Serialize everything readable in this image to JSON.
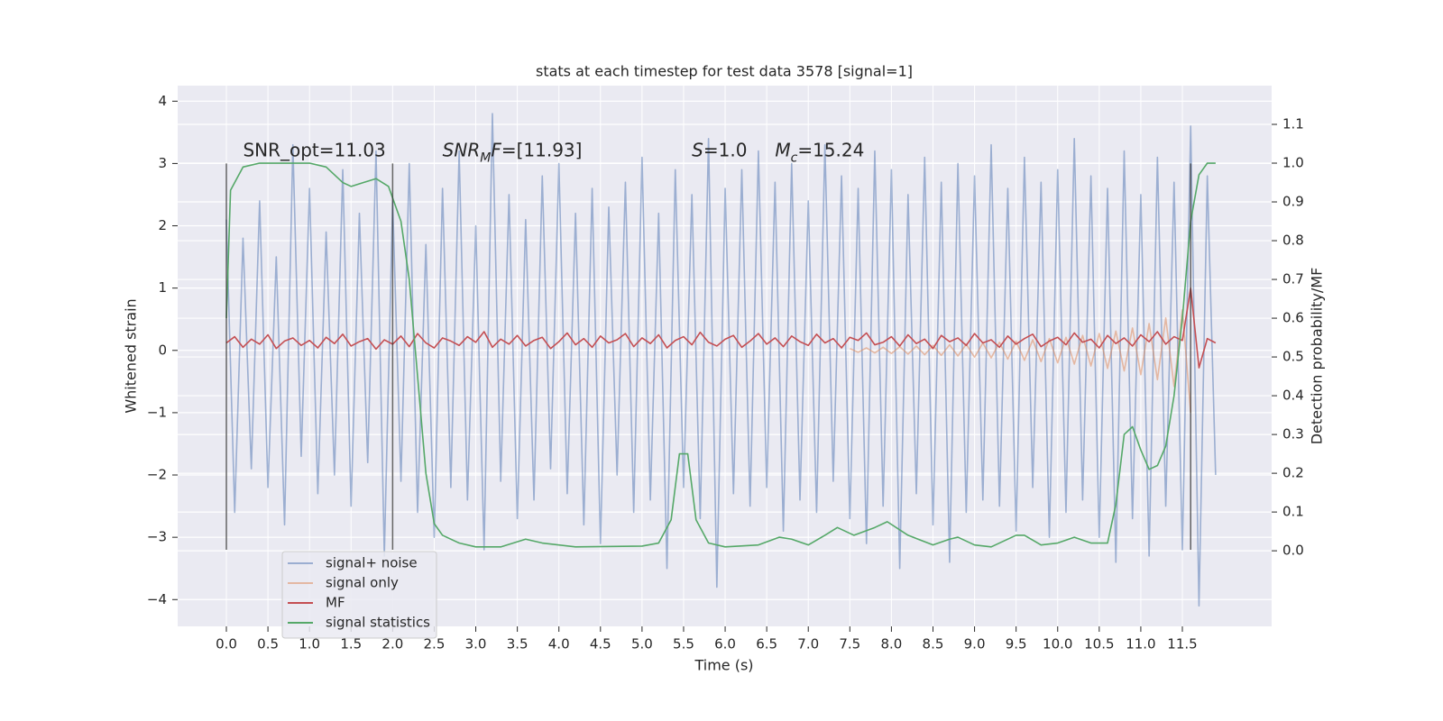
{
  "chart_data": {
    "type": "line",
    "title": "stats at each timestep for test data 3578 [signal=1]",
    "x_label": "Time (s)",
    "y_label": "Whitened strain",
    "y2_label": "Detection probability/MF",
    "xlim": [
      -0.586,
      12.574
    ],
    "ylim": [
      -4.43,
      4.25
    ],
    "y2lim": [
      -0.195,
      1.2
    ],
    "grid": true,
    "legend_loc": "lower left",
    "xticks": [
      {
        "value": 0,
        "label": "0.0"
      },
      0.5,
      {
        "value": 1,
        "label": "1.0"
      },
      1.5,
      {
        "value": 2,
        "label": "2.0"
      },
      2.5,
      {
        "value": 3,
        "label": "3.0"
      },
      3.5,
      {
        "value": 4,
        "label": "4.0"
      },
      4.5,
      {
        "value": 5,
        "label": "5.0"
      },
      5.5,
      {
        "value": 6,
        "label": "6.0"
      },
      6.5,
      {
        "value": 7,
        "label": "7.0"
      },
      7.5,
      {
        "value": 8,
        "label": "8.0"
      },
      8.5,
      {
        "value": 9,
        "label": "9.0"
      },
      9.5,
      {
        "value": 10,
        "label": "10.0"
      },
      10.5,
      {
        "value": 11,
        "label": "11.0"
      },
      11.5
    ],
    "yticks": [
      {
        "value": -4,
        "label": "−4"
      },
      {
        "value": -3,
        "label": "−3"
      },
      {
        "value": -2,
        "label": "−2"
      },
      {
        "value": -1,
        "label": "−1"
      },
      0,
      1,
      2,
      3,
      4
    ],
    "y2ticks": [
      {
        "value": 0,
        "label": "0.0"
      },
      0.1,
      0.2,
      0.3,
      0.4,
      0.5,
      0.6,
      0.7,
      0.8,
      0.9,
      {
        "value": 1,
        "label": "1.0"
      },
      1.1
    ],
    "vlines": {
      "x": [
        0,
        2.0,
        11.6
      ],
      "ymin": -3.2,
      "ymax": 3.0,
      "color": "#333333"
    },
    "annotations": [
      {
        "x": 0.2,
        "y": 3.2,
        "parts": [
          {
            "text": "SNR_opt=11.03"
          }
        ]
      },
      {
        "x": 2.6,
        "y": 3.2,
        "parts": [
          {
            "text": "SNR",
            "italic": true
          },
          {
            "text": "M",
            "italic": true,
            "sub": true
          },
          {
            "text": "F",
            "italic": true
          },
          {
            "text": "=[11.93]"
          }
        ]
      },
      {
        "x": 5.6,
        "y": 3.2,
        "parts": [
          {
            "text": "S",
            "italic": true
          },
          {
            "text": "=1.0"
          }
        ]
      },
      {
        "x": 6.6,
        "y": 3.2,
        "parts": [
          {
            "text": "M",
            "italic": true
          },
          {
            "text": "c",
            "italic": true,
            "sub": true
          },
          {
            "text": "=15.24"
          }
        ]
      }
    ],
    "series": [
      {
        "name": "signal+ noise",
        "color": "#4c72b0",
        "opacity": 0.5,
        "axis": "y",
        "x": [
          0,
          0.1,
          0.2,
          0.3,
          0.4,
          0.5,
          0.6,
          0.7,
          0.8,
          0.9,
          1,
          1.1,
          1.2,
          1.3,
          1.4,
          1.5,
          1.6,
          1.7,
          1.8,
          1.9,
          2,
          2.1,
          2.2,
          2.3,
          2.4,
          2.5,
          2.6,
          2.7,
          2.8,
          2.9,
          3,
          3.1,
          3.2,
          3.3,
          3.4,
          3.5,
          3.6,
          3.7,
          3.8,
          3.9,
          4,
          4.1,
          4.2,
          4.3,
          4.4,
          4.5,
          4.6,
          4.7,
          4.8,
          4.9,
          5,
          5.1,
          5.2,
          5.3,
          5.4,
          5.5,
          5.6,
          5.7,
          5.8,
          5.9,
          6,
          6.1,
          6.2,
          6.3,
          6.4,
          6.5,
          6.6,
          6.7,
          6.8,
          6.9,
          7,
          7.1,
          7.2,
          7.3,
          7.4,
          7.5,
          7.6,
          7.7,
          7.8,
          7.9,
          8,
          8.1,
          8.2,
          8.3,
          8.4,
          8.5,
          8.6,
          8.7,
          8.8,
          8.9,
          9,
          9.1,
          9.2,
          9.3,
          9.4,
          9.5,
          9.6,
          9.7,
          9.8,
          9.9,
          10,
          10.1,
          10.2,
          10.3,
          10.4,
          10.5,
          10.6,
          10.7,
          10.8,
          10.9,
          11,
          11.1,
          11.2,
          11.3,
          11.4,
          11.5,
          11.6,
          11.7,
          11.8,
          11.9
        ],
        "values": [
          2.1,
          -2.6,
          1.8,
          -1.9,
          2.4,
          -2.2,
          1.5,
          -2.8,
          3.3,
          -1.7,
          2.6,
          -2.3,
          1.9,
          -2.0,
          2.9,
          -2.5,
          2.2,
          -1.8,
          3.2,
          -3.3,
          2.4,
          -2.1,
          3.0,
          -2.6,
          1.7,
          -3.0,
          2.6,
          -2.2,
          3.2,
          -2.4,
          2.0,
          -3.2,
          3.8,
          -2.1,
          2.5,
          -2.7,
          2.1,
          -2.4,
          2.8,
          -1.9,
          3.0,
          -2.3,
          2.2,
          -2.8,
          2.6,
          -3.1,
          2.3,
          -2.0,
          2.7,
          -2.6,
          3.1,
          -2.4,
          2.2,
          -3.5,
          2.9,
          -2.2,
          2.5,
          -2.7,
          3.4,
          -3.8,
          2.6,
          -2.3,
          2.9,
          -2.5,
          3.2,
          -2.2,
          2.7,
          -2.9,
          3.0,
          -2.4,
          2.4,
          -2.6,
          3.3,
          -2.1,
          2.8,
          -2.7,
          2.6,
          -3.1,
          3.2,
          -2.5,
          2.9,
          -3.5,
          2.5,
          -2.3,
          3.1,
          -2.8,
          2.7,
          -3.4,
          3.0,
          -2.6,
          2.8,
          -2.4,
          3.3,
          -2.5,
          2.6,
          -2.9,
          3.1,
          -2.2,
          2.7,
          -3.0,
          2.9,
          -2.6,
          3.4,
          -2.4,
          2.8,
          -3.0,
          2.6,
          -3.4,
          3.2,
          -2.7,
          2.5,
          -3.3,
          3.1,
          -2.5,
          2.7,
          -3.2,
          3.6,
          -4.1,
          2.8,
          -2.0
        ]
      },
      {
        "name": "signal only",
        "color": "#dd8452",
        "opacity": 0.5,
        "axis": "y",
        "x": [
          7.5,
          7.6,
          7.7,
          7.8,
          7.9,
          8,
          8.1,
          8.2,
          8.3,
          8.4,
          8.5,
          8.6,
          8.7,
          8.8,
          8.9,
          9,
          9.1,
          9.2,
          9.3,
          9.4,
          9.5,
          9.6,
          9.7,
          9.8,
          9.9,
          10,
          10.1,
          10.2,
          10.3,
          10.4,
          10.5,
          10.6,
          10.7,
          10.8,
          10.9,
          11,
          11.1,
          11.2,
          11.3,
          11.4,
          11.5,
          11.6
        ],
        "values": [
          0.03,
          -0.03,
          0.04,
          -0.04,
          0.05,
          -0.05,
          0.06,
          -0.06,
          0.07,
          -0.07,
          0.08,
          -0.08,
          0.09,
          -0.09,
          0.1,
          -0.11,
          0.12,
          -0.12,
          0.13,
          -0.14,
          0.15,
          -0.16,
          0.17,
          -0.18,
          0.19,
          -0.2,
          0.21,
          -0.22,
          0.24,
          -0.25,
          0.27,
          -0.29,
          0.31,
          -0.33,
          0.36,
          -0.39,
          0.43,
          -0.47,
          0.52,
          -0.58,
          0.65,
          -1.0
        ]
      },
      {
        "name": "MF",
        "color": "#c44e52",
        "opacity": 1,
        "axis": "y",
        "x": [
          0,
          0.1,
          0.2,
          0.3,
          0.4,
          0.5,
          0.6,
          0.7,
          0.8,
          0.9,
          1,
          1.1,
          1.2,
          1.3,
          1.4,
          1.5,
          1.6,
          1.7,
          1.8,
          1.9,
          2,
          2.1,
          2.2,
          2.3,
          2.4,
          2.5,
          2.6,
          2.7,
          2.8,
          2.9,
          3,
          3.1,
          3.2,
          3.3,
          3.4,
          3.5,
          3.6,
          3.7,
          3.8,
          3.9,
          4,
          4.1,
          4.2,
          4.3,
          4.4,
          4.5,
          4.6,
          4.7,
          4.8,
          4.9,
          5,
          5.1,
          5.2,
          5.3,
          5.4,
          5.5,
          5.6,
          5.7,
          5.8,
          5.9,
          6,
          6.1,
          6.2,
          6.3,
          6.4,
          6.5,
          6.6,
          6.7,
          6.8,
          6.9,
          7,
          7.1,
          7.2,
          7.3,
          7.4,
          7.5,
          7.6,
          7.7,
          7.8,
          7.9,
          8,
          8.1,
          8.2,
          8.3,
          8.4,
          8.5,
          8.6,
          8.7,
          8.8,
          8.9,
          9,
          9.1,
          9.2,
          9.3,
          9.4,
          9.5,
          9.6,
          9.7,
          9.8,
          9.9,
          10,
          10.1,
          10.2,
          10.3,
          10.4,
          10.5,
          10.6,
          10.7,
          10.8,
          10.9,
          11,
          11.1,
          11.2,
          11.3,
          11.4,
          11.5,
          11.6,
          11.7,
          11.8,
          11.9
        ],
        "values": [
          0.12,
          0.22,
          0.05,
          0.18,
          0.1,
          0.25,
          0.03,
          0.15,
          0.2,
          0.08,
          0.16,
          0.04,
          0.21,
          0.11,
          0.26,
          0.07,
          0.14,
          0.19,
          0.02,
          0.17,
          0.1,
          0.23,
          0.06,
          0.27,
          0.12,
          0.04,
          0.2,
          0.15,
          0.08,
          0.22,
          0.13,
          0.3,
          0.05,
          0.18,
          0.1,
          0.24,
          0.07,
          0.16,
          0.21,
          0.03,
          0.14,
          0.28,
          0.09,
          0.19,
          0.05,
          0.23,
          0.12,
          0.17,
          0.27,
          0.06,
          0.2,
          0.11,
          0.25,
          0.04,
          0.16,
          0.22,
          0.09,
          0.29,
          0.13,
          0.07,
          0.18,
          0.24,
          0.05,
          0.15,
          0.27,
          0.1,
          0.2,
          0.06,
          0.23,
          0.14,
          0.08,
          0.26,
          0.12,
          0.19,
          0.04,
          0.21,
          0.16,
          0.28,
          0.09,
          0.13,
          0.22,
          0.07,
          0.25,
          0.11,
          0.18,
          0.03,
          0.24,
          0.14,
          0.2,
          0.08,
          0.27,
          0.12,
          0.17,
          0.05,
          0.23,
          0.1,
          0.19,
          0.26,
          0.06,
          0.15,
          0.21,
          0.09,
          0.28,
          0.13,
          0.18,
          0.04,
          0.24,
          0.11,
          0.2,
          0.07,
          0.25,
          0.14,
          0.3,
          0.1,
          0.22,
          0.16,
          1.0,
          -0.28,
          0.19,
          0.12
        ]
      },
      {
        "name": "signal statistics",
        "color": "#55a868",
        "opacity": 1,
        "axis": "y2",
        "x": [
          0,
          0.05,
          0.2,
          0.4,
          1.0,
          1.2,
          1.4,
          1.5,
          1.65,
          1.8,
          1.95,
          2.1,
          2.2,
          2.3,
          2.4,
          2.5,
          2.6,
          2.8,
          3.0,
          3.3,
          3.6,
          3.8,
          4.2,
          5.0,
          5.2,
          5.35,
          5.45,
          5.55,
          5.65,
          5.8,
          6.0,
          6.4,
          6.65,
          6.8,
          7.0,
          7.2,
          7.35,
          7.55,
          7.8,
          7.95,
          8.2,
          8.5,
          8.7,
          8.8,
          9.0,
          9.2,
          9.5,
          9.6,
          9.8,
          10.0,
          10.2,
          10.4,
          10.6,
          10.7,
          10.8,
          10.9,
          11.0,
          11.1,
          11.2,
          11.3,
          11.4,
          11.5,
          11.6,
          11.7,
          11.8,
          11.9
        ],
        "values": [
          0.6,
          0.93,
          0.99,
          1.0,
          1.0,
          0.99,
          0.95,
          0.94,
          0.95,
          0.96,
          0.94,
          0.85,
          0.7,
          0.45,
          0.2,
          0.07,
          0.04,
          0.02,
          0.01,
          0.01,
          0.03,
          0.02,
          0.01,
          0.012,
          0.02,
          0.08,
          0.25,
          0.25,
          0.08,
          0.02,
          0.01,
          0.015,
          0.035,
          0.03,
          0.015,
          0.04,
          0.06,
          0.04,
          0.06,
          0.075,
          0.04,
          0.015,
          0.03,
          0.035,
          0.015,
          0.01,
          0.04,
          0.04,
          0.015,
          0.02,
          0.035,
          0.02,
          0.02,
          0.12,
          0.3,
          0.32,
          0.26,
          0.21,
          0.22,
          0.27,
          0.4,
          0.6,
          0.85,
          0.97,
          1.0,
          1.0
        ]
      }
    ]
  }
}
